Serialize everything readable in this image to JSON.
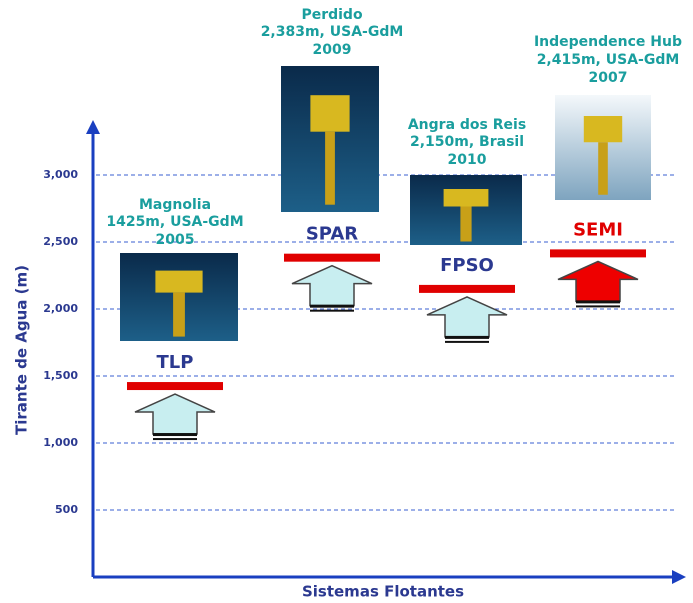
{
  "chart_data": {
    "type": "floating-systems",
    "y_label": "Tirante de Agua (m)",
    "x_label": "Sistemas Flotantes",
    "categories": [
      "TLP",
      "SPAR",
      "FPSO",
      "SEMI"
    ],
    "values": [
      1425,
      2383,
      2150,
      2415
    ],
    "bar_color": "#e00000",
    "label_colors": [
      "#2b3990",
      "#2b3990",
      "#2b3990",
      "#e00000"
    ],
    "arrow_colors": [
      "#c8eef0",
      "#c8eef0",
      "#c8eef0",
      "#ee0000"
    ],
    "annotations": [
      [
        "Magnolia",
        "1425m, USA-GdM",
        "2005"
      ],
      [
        "Perdido",
        "2,383m, USA-GdM",
        "2009"
      ],
      [
        "Angra dos Reis",
        "2,150m, Brasil",
        "2010"
      ],
      [
        "Independence Hub",
        "2,415m, USA-GdM",
        "2007"
      ]
    ],
    "ylim": [
      0,
      3000
    ],
    "yticks": [
      500,
      {
        "value": 1000,
        "label": "1,000"
      },
      {
        "value": 1500,
        "label": "1,500"
      },
      {
        "value": 2000,
        "label": "2,000"
      },
      {
        "value": 2500,
        "label": "2,500"
      },
      {
        "value": 3000,
        "label": "3,000"
      }
    ],
    "grid": true
  }
}
